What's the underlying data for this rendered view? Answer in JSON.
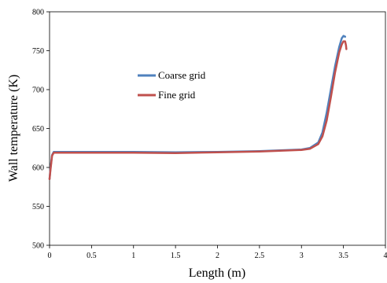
{
  "chart_data": {
    "type": "line",
    "xlabel": "Length (m)",
    "ylabel": "Wall temperature (K)",
    "xlim": [
      0,
      4
    ],
    "ylim": [
      500,
      800
    ],
    "xticks": [
      "0",
      "0.5",
      "1",
      "1.5",
      "2",
      "2.5",
      "3",
      "3.5",
      "4"
    ],
    "yticks": [
      "500",
      "550",
      "600",
      "650",
      "700",
      "750",
      "800"
    ],
    "grid": false,
    "legend_position": "left-center",
    "series": [
      {
        "name": "Coarse grid",
        "color": "#4F81BD",
        "points": [
          [
            0.0,
            585
          ],
          [
            0.01,
            598
          ],
          [
            0.03,
            616
          ],
          [
            0.05,
            620
          ],
          [
            0.1,
            620
          ],
          [
            0.5,
            620
          ],
          [
            1.0,
            620
          ],
          [
            1.5,
            619.5
          ],
          [
            2.0,
            620
          ],
          [
            2.5,
            621
          ],
          [
            3.0,
            623
          ],
          [
            3.1,
            625
          ],
          [
            3.2,
            632
          ],
          [
            3.25,
            645
          ],
          [
            3.3,
            670
          ],
          [
            3.35,
            700
          ],
          [
            3.4,
            730
          ],
          [
            3.45,
            755
          ],
          [
            3.48,
            766
          ],
          [
            3.5,
            769
          ],
          [
            3.52,
            768
          ]
        ]
      },
      {
        "name": "Fine grid",
        "color": "#C0504D",
        "points": [
          [
            0.0,
            585
          ],
          [
            0.01,
            596
          ],
          [
            0.03,
            615
          ],
          [
            0.05,
            619
          ],
          [
            0.1,
            619
          ],
          [
            0.5,
            619
          ],
          [
            1.0,
            619
          ],
          [
            1.5,
            618.5
          ],
          [
            2.0,
            619.5
          ],
          [
            2.5,
            620.5
          ],
          [
            3.0,
            622.5
          ],
          [
            3.1,
            624
          ],
          [
            3.2,
            630
          ],
          [
            3.25,
            640
          ],
          [
            3.3,
            660
          ],
          [
            3.35,
            690
          ],
          [
            3.4,
            722
          ],
          [
            3.45,
            748
          ],
          [
            3.48,
            758
          ],
          [
            3.5,
            762
          ],
          [
            3.52,
            762
          ],
          [
            3.53,
            757
          ],
          [
            3.535,
            752
          ]
        ]
      }
    ]
  }
}
